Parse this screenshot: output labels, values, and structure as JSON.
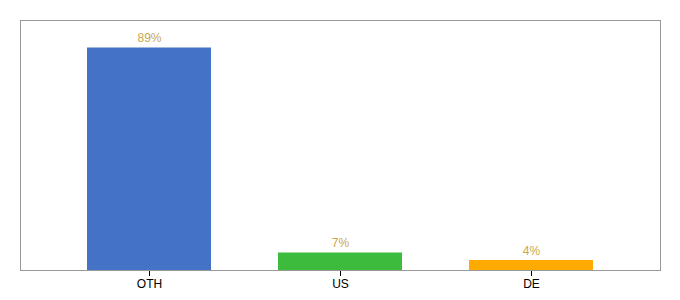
{
  "chart_data": {
    "type": "bar",
    "categories": [
      "OTH",
      "US",
      "DE"
    ],
    "values": [
      89,
      7,
      4
    ],
    "value_labels": [
      "89%",
      "7%",
      "4%"
    ],
    "colors": [
      "#4472c4",
      "#3dbb3d",
      "#ffaa00"
    ],
    "ylim": [
      0,
      100
    ],
    "data_labels": true,
    "tick_labels": "x",
    "grid": false
  }
}
